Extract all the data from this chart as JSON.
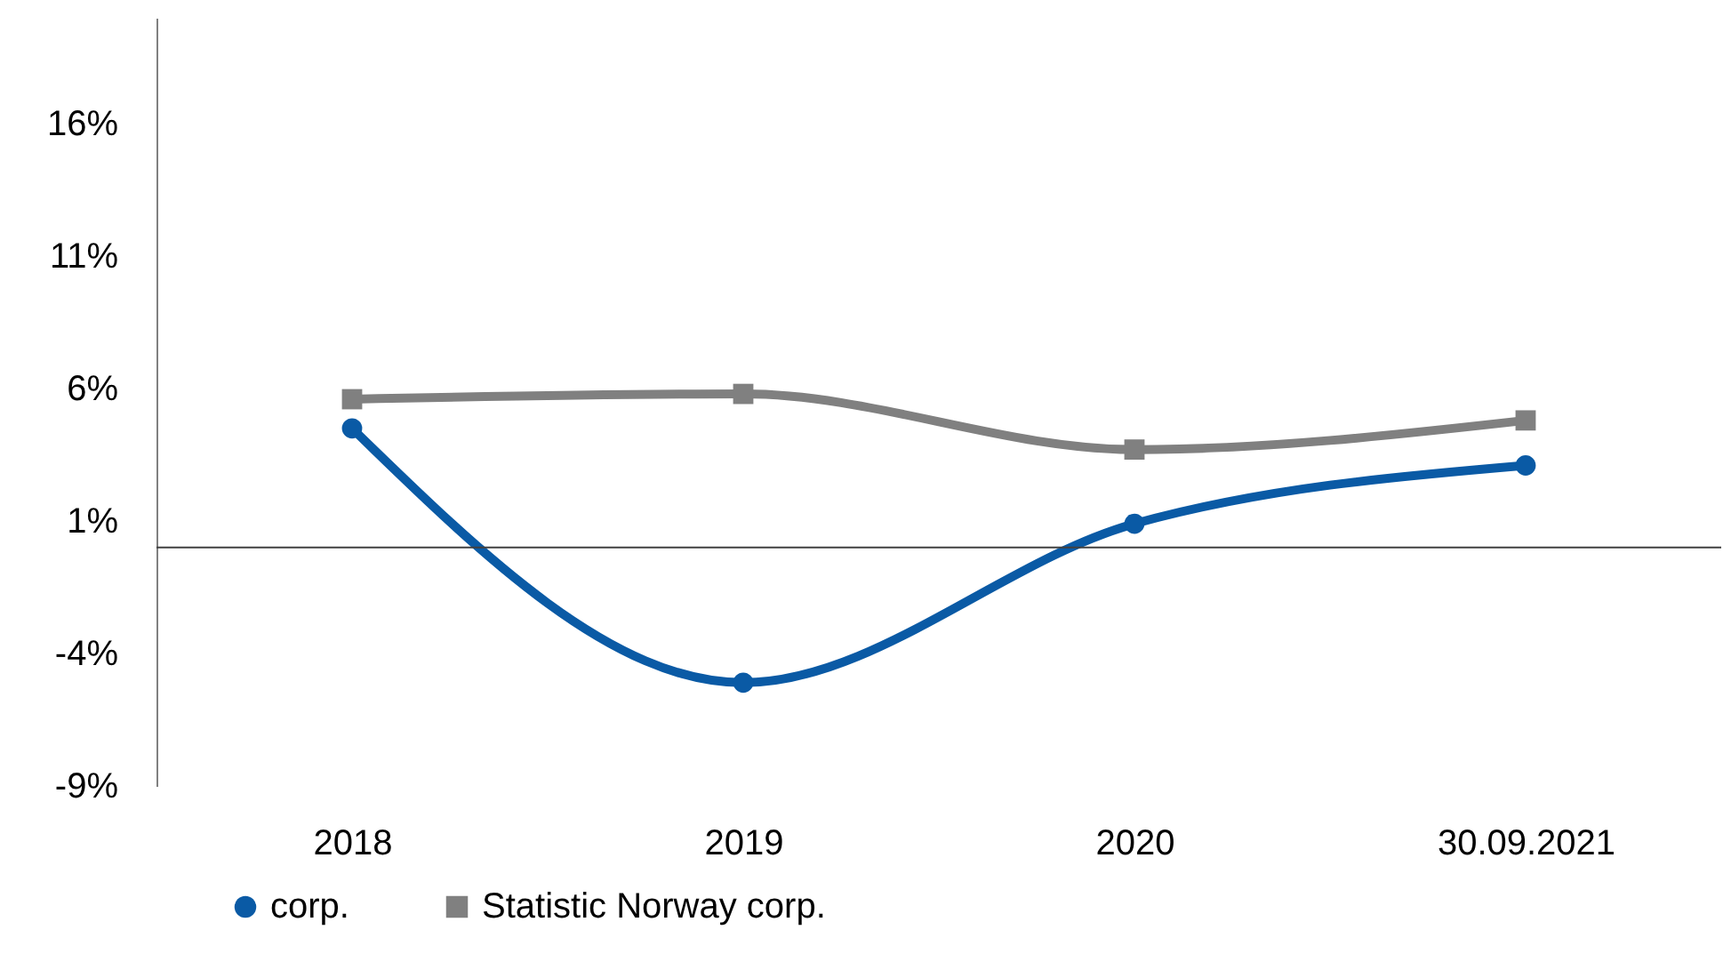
{
  "chart_data": {
    "type": "line",
    "categories": [
      "2018",
      "2019",
      "2020",
      "30.09.2021"
    ],
    "series": [
      {
        "name": "corp.",
        "color": "#0a5aa5",
        "marker": "circle",
        "values": [
          4.5,
          -5.1,
          0.9,
          3.1
        ]
      },
      {
        "name": "Statistic Norway corp.",
        "color": "#808080",
        "marker": "square",
        "values": [
          5.6,
          5.8,
          3.7,
          4.8
        ]
      }
    ],
    "ylim": [
      -9,
      20
    ],
    "yticks": [
      {
        "value": -9,
        "label": "-9%"
      },
      {
        "value": -4,
        "label": "-4%"
      },
      {
        "value": 1,
        "label": "1%"
      },
      {
        "value": 6,
        "label": "6%"
      },
      {
        "value": 11,
        "label": "11%"
      },
      {
        "value": 16,
        "label": "16%"
      }
    ],
    "ref_lines": [
      {
        "axis": "y",
        "value": 0,
        "color": "#404040"
      }
    ],
    "legend": "bottom",
    "grid": false,
    "line_style": "solid"
  }
}
